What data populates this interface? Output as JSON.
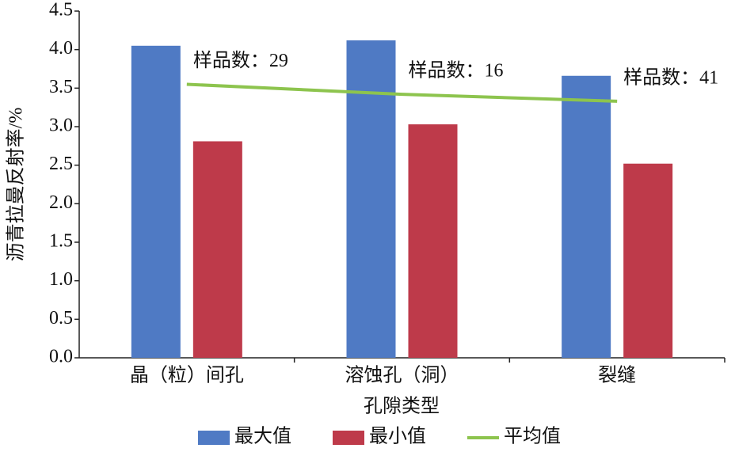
{
  "chart_data": {
    "type": "bar",
    "y_label": "沥青拉曼反射率/%",
    "x_label": "孔隙类型",
    "categories": [
      "晶（粒）间孔",
      "溶蚀孔（洞）",
      "裂缝"
    ],
    "series": [
      {
        "name": "最大值",
        "type": "bar",
        "color": "#4f7ac4",
        "values": [
          4.05,
          4.12,
          3.66
        ]
      },
      {
        "name": "最小值",
        "type": "bar",
        "color": "#be3a4a",
        "values": [
          2.81,
          3.03,
          2.52
        ]
      },
      {
        "name": "平均值",
        "type": "line",
        "color": "#8dc44e",
        "values": [
          3.55,
          3.42,
          3.33
        ]
      }
    ],
    "annotations": [
      "样品数：29",
      "样品数：16",
      "样品数：41"
    ],
    "ylim": [
      0,
      4.5
    ],
    "yticks": [
      {
        "value": 0,
        "label": "0.0"
      },
      0.5,
      {
        "value": 1,
        "label": "1.0"
      },
      1.5,
      {
        "value": 2,
        "label": "2.0"
      },
      2.5,
      {
        "value": 3,
        "label": "3.0"
      },
      3.5,
      {
        "value": 4,
        "label": "4.0"
      },
      4.5
    ],
    "legend": "bottom"
  }
}
